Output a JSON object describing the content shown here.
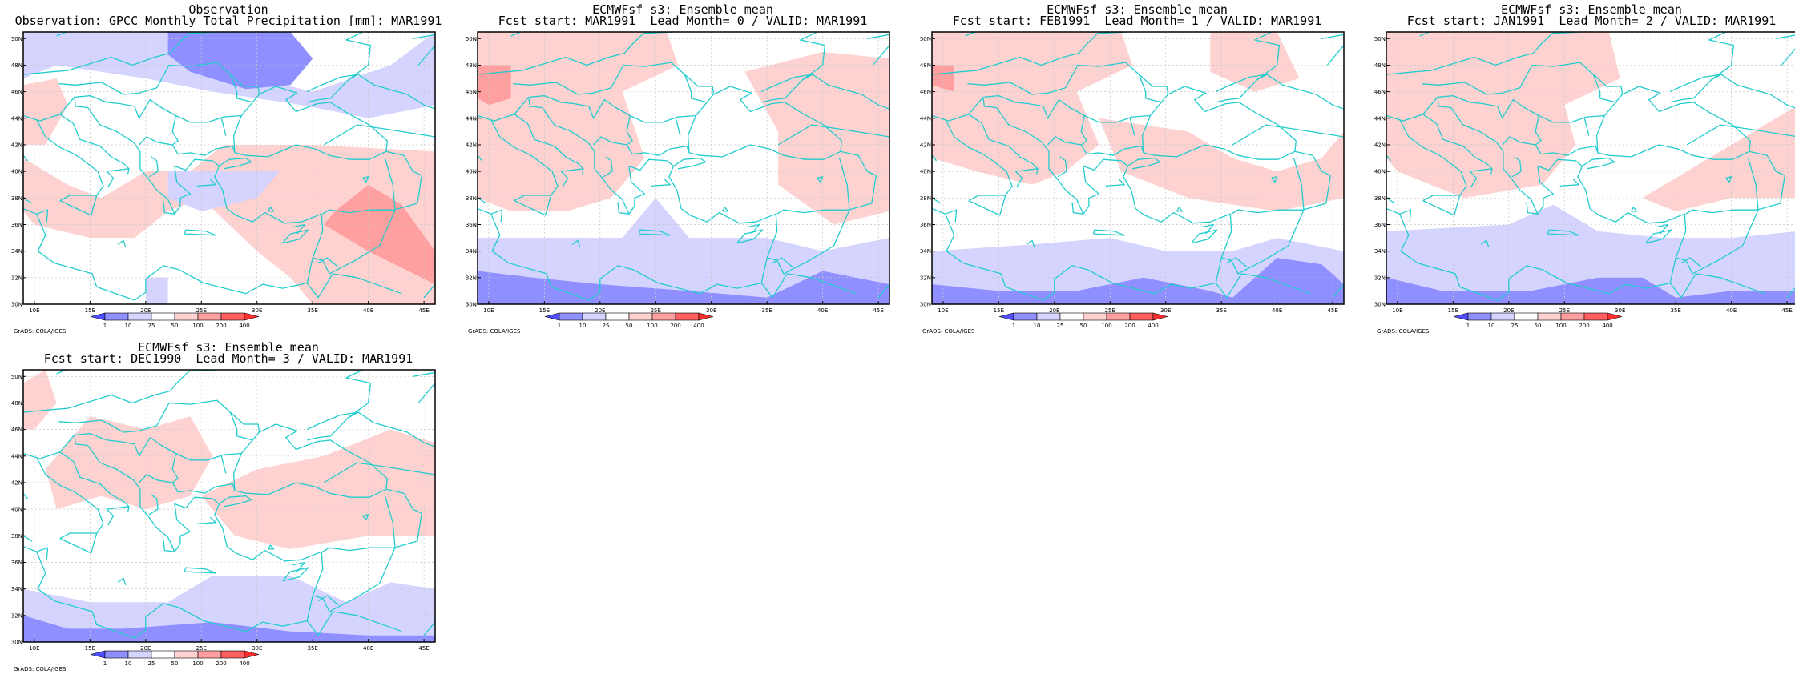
{
  "colorbar": {
    "labels": [
      "1",
      "10",
      "25",
      "50",
      "100",
      "200",
      "400"
    ],
    "colors": [
      "#4f4fff",
      "#8f8fff",
      "#d4d4ff",
      "#ffffff",
      "#ffd2d2",
      "#ff9f9f",
      "#ff5f5f",
      "#ff2f2f"
    ]
  },
  "axes": {
    "lon_labels": [
      "10E",
      "15E",
      "20E",
      "25E",
      "30E",
      "35E",
      "40E",
      "45E"
    ],
    "lat_labels": [
      "50N",
      "48N",
      "46N",
      "44N",
      "42N",
      "40N",
      "38N",
      "36N",
      "34N",
      "32N",
      "30N"
    ]
  },
  "coast_color": "#22cccc",
  "credit": "GrADS: COLA/IGES",
  "panels": [
    {
      "title1": "Observation",
      "title2": "Observation: GPCC Monthly Total Precipitation [mm]: MAR1991",
      "shapes": [
        {
          "lvl": 2,
          "pts": [
            [
              9,
              50.5
            ],
            [
              25,
              50.5
            ],
            [
              25,
              48
            ],
            [
              35,
              46
            ],
            [
              42,
              48
            ],
            [
              46,
              50.5
            ],
            [
              46,
              45
            ],
            [
              40,
              44
            ],
            [
              34,
              45
            ],
            [
              26,
              46
            ],
            [
              20,
              47
            ],
            [
              12,
              48
            ],
            [
              9,
              47
            ]
          ]
        },
        {
          "lvl": 1,
          "pts": [
            [
              22,
              50.5
            ],
            [
              33,
              50.5
            ],
            [
              35,
              48.5
            ],
            [
              33,
              46.5
            ],
            [
              29,
              46.2
            ],
            [
              24,
              47.5
            ],
            [
              22,
              48.8
            ]
          ]
        },
        {
          "lvl": 4,
          "pts": [
            [
              9,
              46.5
            ],
            [
              12,
              47
            ],
            [
              13,
              45
            ],
            [
              11,
              42
            ],
            [
              9,
              42
            ]
          ]
        },
        {
          "lvl": 4,
          "pts": [
            [
              9,
              41
            ],
            [
              13,
              39
            ],
            [
              16,
              38
            ],
            [
              20,
              40
            ],
            [
              24,
              40
            ],
            [
              27,
              42
            ],
            [
              35,
              42
            ],
            [
              46,
              41.5
            ],
            [
              46,
              30
            ],
            [
              35,
              30
            ],
            [
              33,
              32
            ],
            [
              30,
              34
            ],
            [
              25,
              38
            ],
            [
              22,
              37
            ],
            [
              19,
              35
            ],
            [
              15,
              35
            ],
            [
              10,
              36
            ],
            [
              9,
              37
            ]
          ]
        },
        {
          "lvl": 2,
          "pts": [
            [
              22,
              40
            ],
            [
              28,
              40
            ],
            [
              32,
              40
            ],
            [
              30,
              38
            ],
            [
              25,
              37
            ],
            [
              22,
              38
            ]
          ]
        },
        {
          "lvl": 5,
          "pts": [
            [
              37,
              37
            ],
            [
              40,
              39
            ],
            [
              43,
              37.5
            ],
            [
              46,
              34
            ],
            [
              46,
              31.5
            ],
            [
              40,
              34
            ],
            [
              36,
              36
            ]
          ]
        },
        {
          "lvl": 2,
          "pts": [
            [
              20,
              32
            ],
            [
              22,
              32
            ],
            [
              22,
              30
            ],
            [
              20,
              30
            ]
          ]
        },
        {
          "lvl": 3,
          "pts": [
            [
              9,
              31
            ],
            [
              11,
              31
            ],
            [
              11,
              30
            ],
            [
              9,
              30
            ]
          ]
        }
      ]
    },
    {
      "title1": "ECMWFsf s3: Ensemble mean",
      "title2": "Fcst start: MAR1991  Lead Month= 0 / VALID: MAR1991",
      "shapes": [
        {
          "lvl": 4,
          "pts": [
            [
              9,
              50.5
            ],
            [
              26,
              50.5
            ],
            [
              27,
              48
            ],
            [
              22,
              46
            ],
            [
              24,
              41
            ],
            [
              21,
              38
            ],
            [
              17,
              37
            ],
            [
              12,
              37
            ],
            [
              9,
              38
            ]
          ]
        },
        {
          "lvl": 4,
          "pts": [
            [
              33,
              47.5
            ],
            [
              40,
              49
            ],
            [
              46,
              48.5
            ],
            [
              46,
              37
            ],
            [
              41,
              36
            ],
            [
              36,
              39
            ],
            [
              36,
              43
            ]
          ]
        },
        {
          "lvl": 5,
          "pts": [
            [
              9,
              48
            ],
            [
              12,
              48
            ],
            [
              12,
              45.5
            ],
            [
              10,
              45
            ],
            [
              9,
              45.5
            ]
          ]
        },
        {
          "lvl": 2,
          "pts": [
            [
              9,
              35
            ],
            [
              16,
              35
            ],
            [
              22,
              35
            ],
            [
              25,
              38
            ],
            [
              28,
              35
            ],
            [
              35,
              35
            ],
            [
              40,
              34
            ],
            [
              46,
              35
            ],
            [
              46,
              30
            ],
            [
              9,
              30
            ]
          ]
        },
        {
          "lvl": 1,
          "pts": [
            [
              9,
              32.5
            ],
            [
              14,
              32
            ],
            [
              20,
              31.5
            ],
            [
              28,
              31
            ],
            [
              35,
              30.5
            ],
            [
              40,
              32.5
            ],
            [
              46,
              31.5
            ],
            [
              46,
              30
            ],
            [
              9,
              30
            ]
          ]
        }
      ]
    },
    {
      "title1": "ECMWFsf s3: Ensemble mean",
      "title2": "Fcst start: FEB1991  Lead Month= 1 / VALID: MAR1991",
      "shapes": [
        {
          "lvl": 4,
          "pts": [
            [
              9,
              50.5
            ],
            [
              26,
              50.5
            ],
            [
              27,
              48
            ],
            [
              22,
              46
            ],
            [
              24,
              42
            ],
            [
              21,
              40
            ],
            [
              18,
              39
            ],
            [
              13,
              40
            ],
            [
              9,
              41
            ]
          ]
        },
        {
          "lvl": 4,
          "pts": [
            [
              24,
              44
            ],
            [
              32,
              43
            ],
            [
              36,
              41
            ],
            [
              40,
              40
            ],
            [
              44,
              41
            ],
            [
              46,
              43
            ],
            [
              46,
              38
            ],
            [
              40,
              37
            ],
            [
              32,
              38
            ],
            [
              26,
              40
            ]
          ]
        },
        {
          "lvl": 4,
          "pts": [
            [
              34,
              50.5
            ],
            [
              40,
              50.5
            ],
            [
              42,
              47
            ],
            [
              38,
              46
            ],
            [
              34,
              47.5
            ]
          ]
        },
        {
          "lvl": 5,
          "pts": [
            [
              9,
              48
            ],
            [
              11,
              48
            ],
            [
              11,
              46
            ],
            [
              9,
              46.5
            ]
          ]
        },
        {
          "lvl": 2,
          "pts": [
            [
              9,
              34
            ],
            [
              18,
              34.5
            ],
            [
              25,
              35
            ],
            [
              30,
              34
            ],
            [
              36,
              34
            ],
            [
              40,
              35
            ],
            [
              46,
              34
            ],
            [
              46,
              30
            ],
            [
              9,
              30
            ]
          ]
        },
        {
          "lvl": 1,
          "pts": [
            [
              9,
              31.5
            ],
            [
              15,
              31
            ],
            [
              22,
              31
            ],
            [
              28,
              32
            ],
            [
              34,
              31
            ],
            [
              36,
              30.5
            ],
            [
              40,
              33.5
            ],
            [
              44,
              33
            ],
            [
              46,
              31.5
            ],
            [
              46,
              30
            ],
            [
              9,
              30
            ]
          ]
        }
      ]
    },
    {
      "title1": "ECMWFsf s3: Ensemble mean",
      "title2": "Fcst start: JAN1991  Lead Month= 2 / VALID: MAR1991",
      "shapes": [
        {
          "lvl": 4,
          "pts": [
            [
              9,
              50.5
            ],
            [
              29,
              50.5
            ],
            [
              30,
              47
            ],
            [
              25,
              45
            ],
            [
              26,
              42
            ],
            [
              23,
              39
            ],
            [
              16,
              38
            ],
            [
              10,
              40
            ],
            [
              9,
              41
            ]
          ]
        },
        {
          "lvl": 4,
          "pts": [
            [
              32,
              38
            ],
            [
              40,
              42
            ],
            [
              44,
              44
            ],
            [
              46,
              45
            ],
            [
              46,
              38
            ],
            [
              40,
              38
            ],
            [
              35,
              37
            ]
          ]
        },
        {
          "lvl": 2,
          "pts": [
            [
              9,
              35.5
            ],
            [
              20,
              36
            ],
            [
              24,
              37.5
            ],
            [
              28,
              35.5
            ],
            [
              34,
              35
            ],
            [
              40,
              35
            ],
            [
              46,
              35.5
            ],
            [
              46,
              30
            ],
            [
              9,
              30
            ]
          ]
        },
        {
          "lvl": 1,
          "pts": [
            [
              9,
              32
            ],
            [
              14,
              31
            ],
            [
              22,
              31
            ],
            [
              28,
              32
            ],
            [
              32,
              32
            ],
            [
              35,
              30.5
            ],
            [
              40,
              31
            ],
            [
              46,
              31
            ],
            [
              46,
              30
            ],
            [
              9,
              30
            ]
          ]
        }
      ]
    },
    {
      "title1": "ECMWFsf s3: Ensemble mean",
      "title2": "Fcst start: DEC1990  Lead Month= 3 / VALID: MAR1991",
      "shapes": [
        {
          "lvl": 4,
          "pts": [
            [
              9,
              49.5
            ],
            [
              11,
              50.5
            ],
            [
              12,
              48
            ],
            [
              10,
              46
            ],
            [
              9,
              46
            ]
          ]
        },
        {
          "lvl": 4,
          "pts": [
            [
              15,
              47
            ],
            [
              20,
              46
            ],
            [
              24,
              47
            ],
            [
              26,
              44
            ],
            [
              24,
              41
            ],
            [
              20,
              40
            ],
            [
              16,
              41
            ],
            [
              12,
              40
            ],
            [
              11,
              43
            ],
            [
              13,
              45
            ]
          ]
        },
        {
          "lvl": 4,
          "pts": [
            [
              25,
              41
            ],
            [
              30,
              43
            ],
            [
              36,
              44
            ],
            [
              42,
              46
            ],
            [
              46,
              45
            ],
            [
              46,
              38
            ],
            [
              40,
              38
            ],
            [
              33,
              37
            ],
            [
              28,
              38
            ]
          ]
        },
        {
          "lvl": 2,
          "pts": [
            [
              9,
              34
            ],
            [
              15,
              33
            ],
            [
              22,
              33
            ],
            [
              26,
              35
            ],
            [
              33,
              35
            ],
            [
              38,
              33
            ],
            [
              42,
              34.5
            ],
            [
              46,
              34
            ],
            [
              46,
              30
            ],
            [
              9,
              30
            ]
          ]
        },
        {
          "lvl": 1,
          "pts": [
            [
              9,
              32
            ],
            [
              13,
              31
            ],
            [
              18,
              31
            ],
            [
              26,
              31.5
            ],
            [
              33,
              30.8
            ],
            [
              40,
              30.5
            ],
            [
              46,
              30.5
            ],
            [
              46,
              30
            ],
            [
              9,
              30
            ]
          ]
        }
      ]
    }
  ]
}
